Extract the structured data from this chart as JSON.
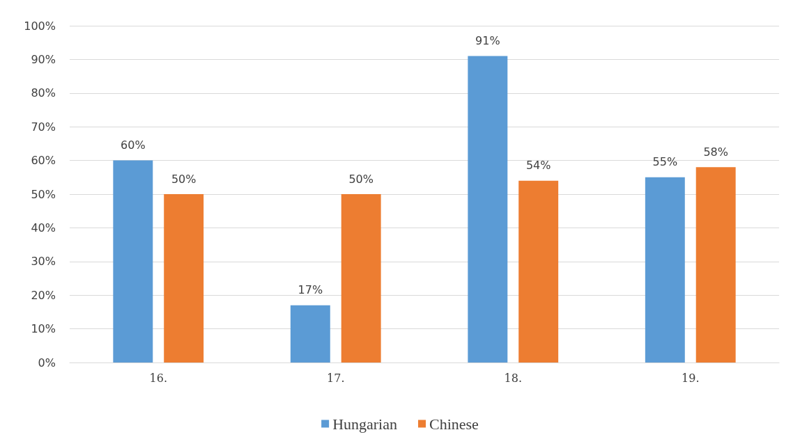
{
  "chart_data": {
    "type": "bar",
    "categories": [
      "16.",
      "17.",
      "18.",
      "19."
    ],
    "series": [
      {
        "name": "Hungarian",
        "color": "#5b9bd5",
        "values": [
          60,
          17,
          91,
          55
        ],
        "value_labels": [
          "60%",
          "17%",
          "91%",
          "55%"
        ]
      },
      {
        "name": "Chinese",
        "color": "#ed7d31",
        "values": [
          50,
          50,
          54,
          58
        ],
        "value_labels": [
          "50%",
          "50%",
          "54%",
          "58%"
        ]
      }
    ],
    "ylim": [
      0,
      100
    ],
    "yticks": [
      {
        "value": 0,
        "label": "0%"
      },
      {
        "value": 10,
        "label": "10%"
      },
      {
        "value": 20,
        "label": "20%"
      },
      {
        "value": 30,
        "label": "30%"
      },
      {
        "value": 40,
        "label": "40%"
      },
      {
        "value": 50,
        "label": "50%"
      },
      {
        "value": 60,
        "label": "60%"
      },
      {
        "value": 70,
        "label": "70%"
      },
      {
        "value": 80,
        "label": "80%"
      },
      {
        "value": 90,
        "label": "90%"
      },
      {
        "value": 100,
        "label": "100%"
      }
    ],
    "grid": "y",
    "legend": "bottom"
  }
}
